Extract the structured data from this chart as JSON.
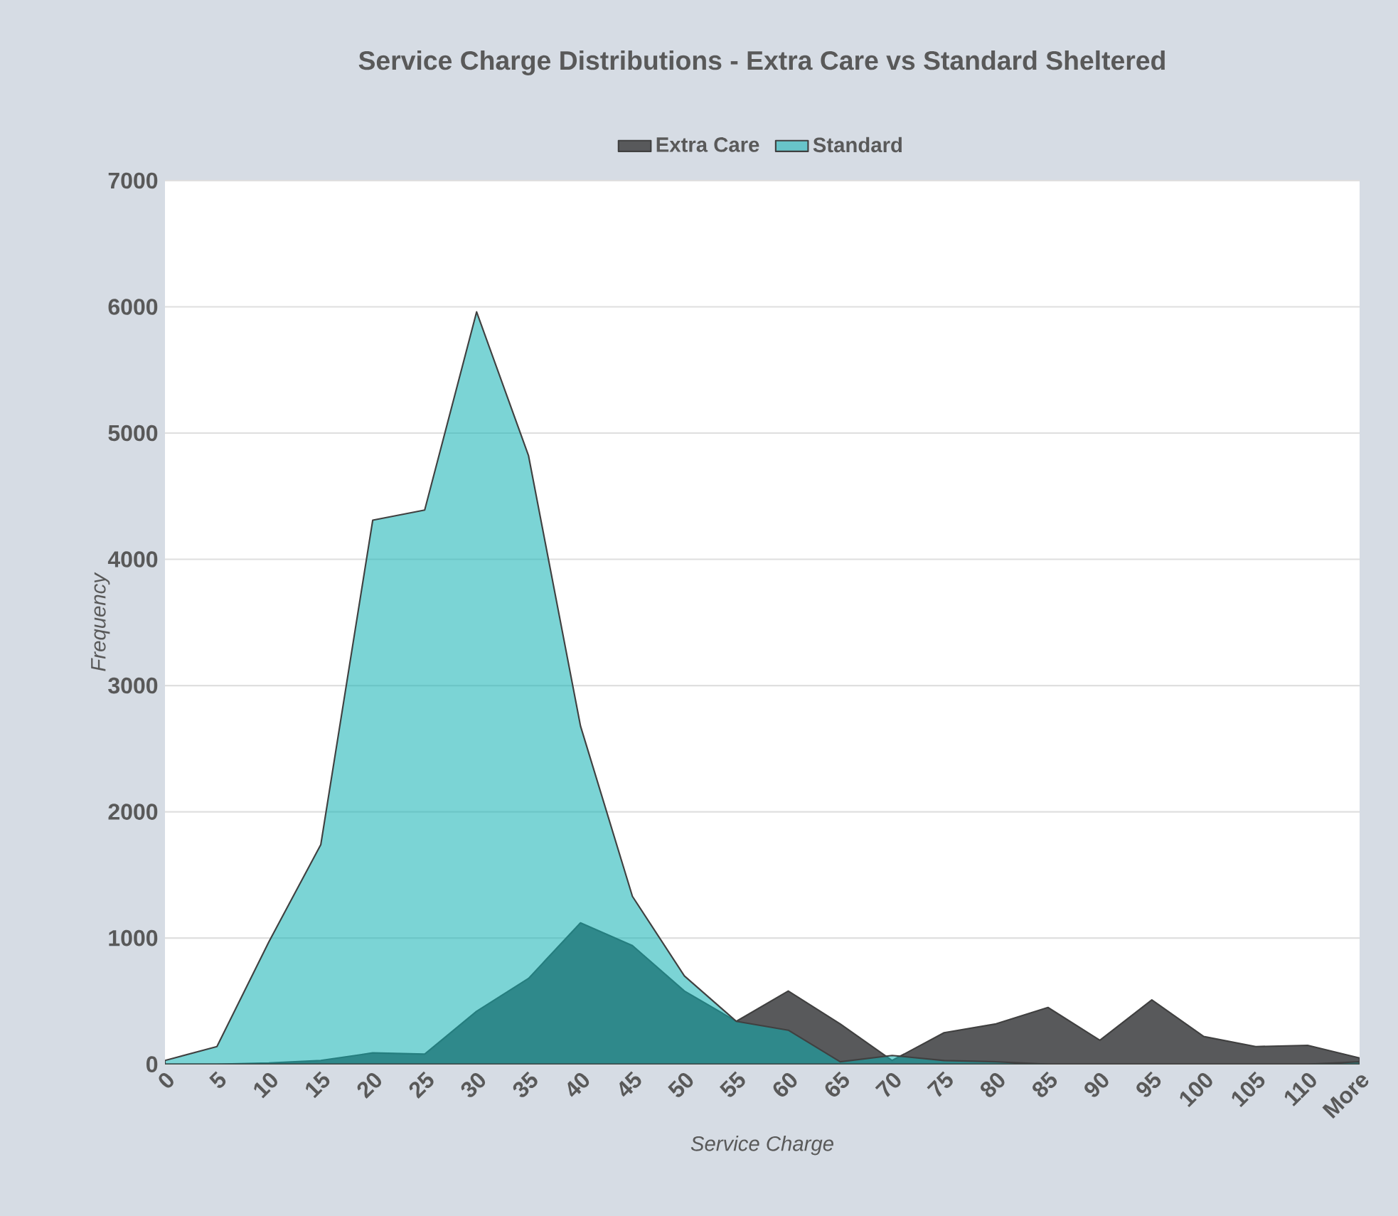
{
  "chart_data": {
    "type": "area",
    "title": "Service Charge Distributions - Extra Care vs Standard Sheltered",
    "xlabel": "Service Charge",
    "ylabel": "Frequency",
    "categories": [
      "0",
      "5",
      "10",
      "15",
      "20",
      "25",
      "30",
      "35",
      "40",
      "45",
      "50",
      "55",
      "60",
      "65",
      "70",
      "75",
      "80",
      "85",
      "90",
      "95",
      "100",
      "105",
      "110",
      "More"
    ],
    "series": [
      {
        "name": "Extra Care",
        "color": "#58595b",
        "values": [
          0,
          0,
          10,
          30,
          90,
          80,
          420,
          680,
          1120,
          940,
          580,
          340,
          580,
          320,
          30,
          250,
          320,
          450,
          190,
          510,
          220,
          140,
          150,
          50
        ]
      },
      {
        "name": "Standard",
        "color": "#0fb0b3",
        "values": [
          30,
          140,
          970,
          1740,
          4310,
          4390,
          5960,
          4820,
          2680,
          1330,
          700,
          340,
          270,
          20,
          70,
          30,
          20,
          0,
          0,
          0,
          0,
          0,
          0,
          20
        ]
      }
    ],
    "ylim": [
      0,
      7000
    ],
    "yticks": [
      0,
      1000,
      2000,
      3000,
      4000,
      5000,
      6000,
      7000
    ],
    "grid": "y",
    "legend": "top"
  }
}
